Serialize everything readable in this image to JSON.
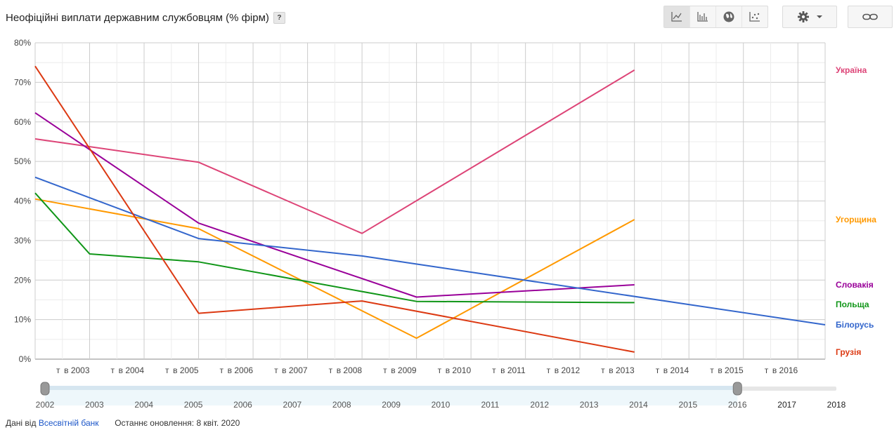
{
  "header": {
    "title": "Неофіційні виплати державним службовцям (% фірм)",
    "help": "?"
  },
  "toolbar": {
    "chart_types": [
      {
        "name": "line-chart-icon",
        "active": true
      },
      {
        "name": "bar-chart-icon",
        "active": false
      },
      {
        "name": "map-icon",
        "active": false
      },
      {
        "name": "scatter-chart-icon",
        "active": false
      }
    ],
    "settings_icon": "gear-icon",
    "link_icon": "link-icon"
  },
  "footer": {
    "source_prefix": "Дані від",
    "source_link": "Всесвітній банк",
    "updated": "Останнє оновлення: 8 квіт. 2020"
  },
  "chart_data": {
    "type": "line",
    "ylim": [
      0,
      80
    ],
    "y_ticks": [
      "0%",
      "10%",
      "20%",
      "30%",
      "40%",
      "50%",
      "60%",
      "70%",
      "80%"
    ],
    "xlim": [
      2002,
      2016.5
    ],
    "x_tick_labels": [
      {
        "year": 2002.5,
        "label": "т"
      },
      {
        "year": 2003,
        "label": "в 2003"
      },
      {
        "year": 2003.5,
        "label": "т"
      },
      {
        "year": 2004,
        "label": "в 2004"
      },
      {
        "year": 2004.5,
        "label": "т"
      },
      {
        "year": 2005,
        "label": "в 2005"
      },
      {
        "year": 2005.5,
        "label": "т"
      },
      {
        "year": 2006,
        "label": "в 2006"
      },
      {
        "year": 2006.5,
        "label": "т"
      },
      {
        "year": 2007,
        "label": "в 2007"
      },
      {
        "year": 2007.5,
        "label": "т"
      },
      {
        "year": 2008,
        "label": "в 2008"
      },
      {
        "year": 2008.5,
        "label": "т"
      },
      {
        "year": 2009,
        "label": "в 2009"
      },
      {
        "year": 2009.5,
        "label": "т"
      },
      {
        "year": 2010,
        "label": "в 2010"
      },
      {
        "year": 2010.5,
        "label": "т"
      },
      {
        "year": 2011,
        "label": "в 2011"
      },
      {
        "year": 2011.5,
        "label": "т"
      },
      {
        "year": 2012,
        "label": "в 2012"
      },
      {
        "year": 2012.5,
        "label": "т"
      },
      {
        "year": 2013,
        "label": "в 2013"
      },
      {
        "year": 2013.5,
        "label": "т"
      },
      {
        "year": 2014,
        "label": "в 2014"
      },
      {
        "year": 2014.5,
        "label": "т"
      },
      {
        "year": 2015,
        "label": "в 2015"
      },
      {
        "year": 2015.5,
        "label": "т"
      },
      {
        "year": 2016,
        "label": "в 2016"
      }
    ],
    "grid": true,
    "legend": "right, labels at line ends",
    "series": [
      {
        "name": "Україна",
        "color": "#dd4477",
        "points": [
          [
            2002,
            55.7
          ],
          [
            2005,
            49.8
          ],
          [
            2008,
            31.8
          ],
          [
            2013,
            73.1
          ]
        ]
      },
      {
        "name": "Угорщина",
        "color": "#ff9900",
        "points": [
          [
            2002,
            40.5
          ],
          [
            2005,
            33.0
          ],
          [
            2009,
            5.3
          ],
          [
            2013,
            35.3
          ]
        ]
      },
      {
        "name": "Словакія",
        "color": "#990099",
        "points": [
          [
            2002,
            62.3
          ],
          [
            2005,
            34.4
          ],
          [
            2009,
            15.7
          ],
          [
            2013,
            18.8
          ]
        ]
      },
      {
        "name": "Польща",
        "color": "#109618",
        "points": [
          [
            2002,
            42.0
          ],
          [
            2003,
            26.6
          ],
          [
            2005,
            24.6
          ],
          [
            2009,
            14.6
          ],
          [
            2013,
            14.3
          ]
        ]
      },
      {
        "name": "Білорусь",
        "color": "#3366cc",
        "points": [
          [
            2002,
            46.0
          ],
          [
            2005,
            30.5
          ],
          [
            2008,
            26.1
          ],
          [
            2016.5,
            8.7
          ]
        ]
      },
      {
        "name": "Грузія",
        "color": "#dc3912",
        "points": [
          [
            2002,
            74.1
          ],
          [
            2005,
            11.6
          ],
          [
            2008,
            14.7
          ],
          [
            2013,
            1.8
          ]
        ]
      }
    ],
    "range_slider": {
      "labels": [
        "2002",
        "2003",
        "2004",
        "2005",
        "2006",
        "2007",
        "2008",
        "2009",
        "2010",
        "2011",
        "2012",
        "2013",
        "2014",
        "2015",
        "2016",
        "2017",
        "2018"
      ],
      "selected_start": "2002",
      "selected_end": "2016"
    }
  }
}
